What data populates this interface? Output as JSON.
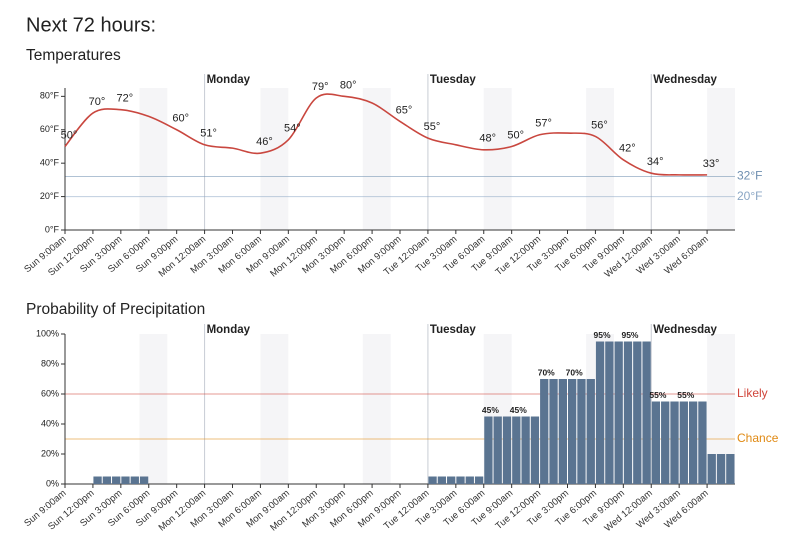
{
  "title": "Next 72 hours:",
  "chart_data": [
    {
      "type": "line",
      "title": "Temperatures",
      "categories": [
        "Sun 9:00am",
        "Sun 12:00pm",
        "Sun 3:00pm",
        "Sun 6:00pm",
        "Sun 9:00pm",
        "Mon 12:00am",
        "Mon 3:00am",
        "Mon 6:00am",
        "Mon 9:00am",
        "Mon 12:00pm",
        "Mon 3:00pm",
        "Mon 6:00pm",
        "Mon 9:00pm",
        "Tue 12:00am",
        "Tue 3:00am",
        "Tue 6:00am",
        "Tue 9:00am",
        "Tue 12:00pm",
        "Tue 3:00pm",
        "Tue 6:00pm",
        "Tue 9:00pm",
        "Wed 12:00am",
        "Wed 3:00am",
        "Wed 6:00am"
      ],
      "values": [
        50,
        70,
        72,
        68,
        60,
        51,
        49,
        46,
        54,
        79,
        80,
        76,
        65,
        55,
        51,
        48,
        50,
        57,
        58,
        56,
        42,
        34,
        33,
        33
      ],
      "value_labels": [
        "50°",
        "70°",
        "72°",
        null,
        "60°",
        "51°",
        null,
        "46°",
        "54°",
        "79°",
        "80°",
        null,
        "65°",
        "55°",
        null,
        "48°",
        "50°",
        "57°",
        null,
        "56°",
        "42°",
        "34°",
        null,
        "33°"
      ],
      "color": "#c9473f",
      "ylim": [
        0,
        85
      ],
      "yticks": [
        {
          "value": 0,
          "label": "0°F"
        },
        {
          "value": 20,
          "label": "20°F"
        },
        {
          "value": 40,
          "label": "40°F"
        },
        {
          "value": 60,
          "label": "60°F"
        },
        {
          "value": 80,
          "label": "80°F"
        }
      ],
      "reference_lines": [
        {
          "value": 32,
          "label": "32°F",
          "color": "#6f8fb0"
        },
        {
          "value": 20,
          "label": "20°F",
          "color": "#8aa6c4"
        }
      ],
      "days": [
        {
          "label": "Monday",
          "at": "Mon 12:00am"
        },
        {
          "label": "Tuesday",
          "at": "Tue 12:00am"
        },
        {
          "label": "Wednesday",
          "at": "Wed 12:00am"
        }
      ]
    },
    {
      "type": "bar",
      "title": "Probability of Precipitation",
      "categories": [
        "Sun 9:00am",
        null,
        null,
        "Sun 12:00pm",
        null,
        null,
        "Sun 3:00pm",
        null,
        null,
        "Sun 6:00pm",
        null,
        null,
        "Sun 9:00pm",
        null,
        null,
        "Mon 12:00am",
        null,
        null,
        "Mon 3:00am",
        null,
        null,
        "Mon 6:00am",
        null,
        null,
        "Mon 9:00am",
        null,
        null,
        "Mon 12:00pm",
        null,
        null,
        "Mon 3:00pm",
        null,
        null,
        "Mon 6:00pm",
        null,
        null,
        "Mon 9:00pm",
        null,
        null,
        "Tue 12:00am",
        null,
        null,
        "Tue 3:00am",
        null,
        null,
        "Tue 6:00am",
        null,
        null,
        "Tue 9:00am",
        null,
        null,
        "Tue 12:00pm",
        null,
        null,
        "Tue 3:00pm",
        null,
        null,
        "Tue 6:00pm",
        null,
        null,
        "Tue 9:00pm",
        null,
        null,
        "Wed 12:00am",
        null,
        null,
        "Wed 3:00am",
        null,
        null,
        "Wed 6:00am",
        null,
        null
      ],
      "values": [
        0,
        0,
        0,
        5,
        5,
        5,
        5,
        5,
        5,
        0,
        0,
        0,
        0,
        0,
        0,
        0,
        0,
        0,
        0,
        0,
        0,
        0,
        0,
        0,
        0,
        0,
        0,
        0,
        0,
        0,
        0,
        0,
        0,
        0,
        0,
        0,
        0,
        0,
        0,
        5,
        5,
        5,
        5,
        5,
        5,
        45,
        45,
        45,
        45,
        45,
        45,
        70,
        70,
        70,
        70,
        70,
        70,
        95,
        95,
        95,
        95,
        95,
        95,
        55,
        55,
        55,
        55,
        55,
        55,
        20,
        20,
        20
      ],
      "value_labels": [
        null,
        null,
        null,
        null,
        null,
        null,
        null,
        null,
        null,
        null,
        null,
        null,
        null,
        null,
        null,
        null,
        null,
        null,
        null,
        null,
        null,
        null,
        null,
        null,
        null,
        null,
        null,
        null,
        null,
        null,
        null,
        null,
        null,
        null,
        null,
        null,
        null,
        null,
        null,
        null,
        null,
        null,
        null,
        null,
        null,
        "45%",
        null,
        null,
        "45%",
        null,
        null,
        "70%",
        null,
        null,
        "70%",
        null,
        null,
        "95%",
        null,
        null,
        "95%",
        null,
        null,
        "55%",
        null,
        null,
        "55%",
        null,
        null,
        null,
        null,
        null
      ],
      "color": "#5a7491",
      "ylim": [
        0,
        100
      ],
      "yticks": [
        {
          "value": 0,
          "label": "0%"
        },
        {
          "value": 20,
          "label": "20%"
        },
        {
          "value": 40,
          "label": "40%"
        },
        {
          "value": 60,
          "label": "60%"
        },
        {
          "value": 80,
          "label": "80%"
        },
        {
          "value": 100,
          "label": "100%"
        }
      ],
      "reference_lines": [
        {
          "value": 60,
          "label": "Likely",
          "color": "#d0443a"
        },
        {
          "value": 30,
          "label": "Chance",
          "color": "#e08a14"
        }
      ],
      "days": [
        {
          "label": "Monday",
          "at": "Mon 12:00am"
        },
        {
          "label": "Tuesday",
          "at": "Tue 12:00am"
        },
        {
          "label": "Wednesday",
          "at": "Wed 12:00am"
        }
      ]
    }
  ]
}
